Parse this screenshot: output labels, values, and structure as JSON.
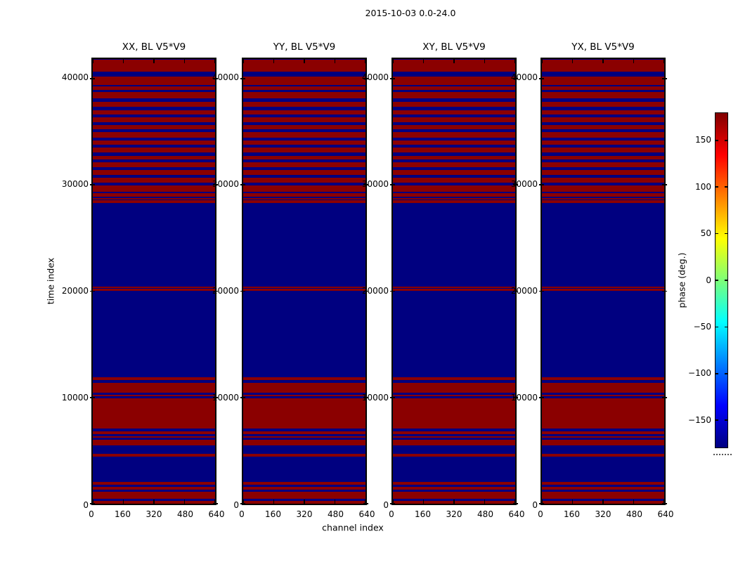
{
  "figure": {
    "title": "2015-10-03 0.0-24.0",
    "xlabel": "channel index",
    "ylabel": "time index",
    "background": "#ffffff"
  },
  "panels": [
    {
      "title": "XX, BL V5*V9"
    },
    {
      "title": "YY, BL V5*V9"
    },
    {
      "title": "XY, BL V5*V9"
    },
    {
      "title": "YX, BL V5*V9"
    }
  ],
  "axis": {
    "x_tick_labels": [
      "0",
      "160",
      "320",
      "480",
      "640"
    ],
    "y_tick_labels": [
      "0",
      "10000",
      "20000",
      "30000",
      "40000"
    ]
  },
  "colorbar": {
    "label": "phase (deg.)",
    "tick_labels": [
      "150",
      "100",
      "50",
      "0",
      "−50",
      "−100",
      "−150"
    ],
    "tick_values": [
      150,
      100,
      50,
      0,
      -50,
      -100,
      -150
    ],
    "vmin": -180,
    "vmax": 180,
    "colormap": "jet",
    "gradient_stops": [
      [
        "0%",
        "#800000"
      ],
      [
        "12.5%",
        "#ff0000"
      ],
      [
        "37.5%",
        "#ffff00"
      ],
      [
        "50%",
        "#7dff78"
      ],
      [
        "62.5%",
        "#00ffff"
      ],
      [
        "87.5%",
        "#0000ff"
      ],
      [
        "100%",
        "#000080"
      ]
    ]
  },
  "colors": {
    "phase_positive_red": "#8b0000",
    "phase_negative_blue": "#000080",
    "frame": "#000000"
  },
  "chart_data": {
    "type": "heatmap",
    "title": "2015-10-03 0.0-24.0",
    "panel_titles": [
      "XX, BL V5*V9",
      "YY, BL V5*V9",
      "XY, BL V5*V9",
      "YX, BL V5*V9"
    ],
    "xlabel": "channel index",
    "ylabel": "time index",
    "xlim": [
      0,
      640
    ],
    "ylim": [
      0,
      41850
    ],
    "x_ticks": [
      0,
      160,
      320,
      480,
      640
    ],
    "y_ticks": [
      0,
      10000,
      20000,
      30000,
      40000
    ],
    "colorbar": {
      "label": "phase (deg.)",
      "vmin": -180,
      "vmax": 180,
      "ticks": [
        150,
        100,
        50,
        0,
        -50,
        -100,
        -150
      ],
      "colormap": "jet"
    },
    "value_legend": {
      "r": "phase ~ +180 deg (dark red)",
      "b": "phase ~ -180 deg (navy blue)"
    },
    "note": "All four polarization panels show an identical pattern of full-width horizontal bands; phase is saturated at +/-180 deg so the image is only dark red (r) and navy (b). Stripes listed top (time index ~41850) to bottom (0); heights are fractions of the 637px plot height.",
    "stripes": [
      [
        1.5,
        "b"
      ],
      [
        16.5,
        "r"
      ],
      [
        7,
        "b"
      ],
      [
        12,
        "r"
      ],
      [
        2.5,
        "b"
      ],
      [
        4.5,
        "r"
      ],
      [
        3.5,
        "b"
      ],
      [
        8.5,
        "r"
      ],
      [
        5,
        "b"
      ],
      [
        7.5,
        "r"
      ],
      [
        4.5,
        "b"
      ],
      [
        6.5,
        "r"
      ],
      [
        4,
        "b"
      ],
      [
        7,
        "r"
      ],
      [
        4.5,
        "b"
      ],
      [
        6,
        "r"
      ],
      [
        4,
        "b"
      ],
      [
        7.5,
        "r"
      ],
      [
        4.5,
        "b"
      ],
      [
        6,
        "r"
      ],
      [
        4,
        "b"
      ],
      [
        6.5,
        "r"
      ],
      [
        5,
        "b"
      ],
      [
        5.5,
        "r"
      ],
      [
        4.5,
        "b"
      ],
      [
        6.5,
        "r"
      ],
      [
        4.5,
        "b"
      ],
      [
        6.5,
        "r"
      ],
      [
        4,
        "b"
      ],
      [
        7,
        "r"
      ],
      [
        4,
        "b"
      ],
      [
        9,
        "r"
      ],
      [
        2,
        "b"
      ],
      [
        5.5,
        "r"
      ],
      [
        1.5,
        "b"
      ],
      [
        2.5,
        "r"
      ],
      [
        1,
        "b"
      ],
      [
        4,
        "r"
      ],
      [
        119.5,
        "b"
      ],
      [
        2.5,
        "r"
      ],
      [
        1,
        "b"
      ],
      [
        2.5,
        "r"
      ],
      [
        124.5,
        "b"
      ],
      [
        4,
        "r"
      ],
      [
        3.5,
        "b"
      ],
      [
        14.5,
        "r"
      ],
      [
        2.5,
        "b"
      ],
      [
        2.5,
        "r"
      ],
      [
        2.5,
        "b"
      ],
      [
        44,
        "r"
      ],
      [
        3.3,
        "b"
      ],
      [
        4,
        "r"
      ],
      [
        3.4,
        "b"
      ],
      [
        2.3,
        "r"
      ],
      [
        3,
        "b"
      ],
      [
        8.3,
        "r"
      ],
      [
        11.7,
        "b"
      ],
      [
        4.3,
        "r"
      ],
      [
        36,
        "b"
      ],
      [
        4,
        "r"
      ],
      [
        3.4,
        "b"
      ],
      [
        3.3,
        "r"
      ],
      [
        3.3,
        "b"
      ],
      [
        10,
        "r"
      ],
      [
        3.4,
        "b"
      ],
      [
        3.8,
        "r"
      ]
    ]
  }
}
